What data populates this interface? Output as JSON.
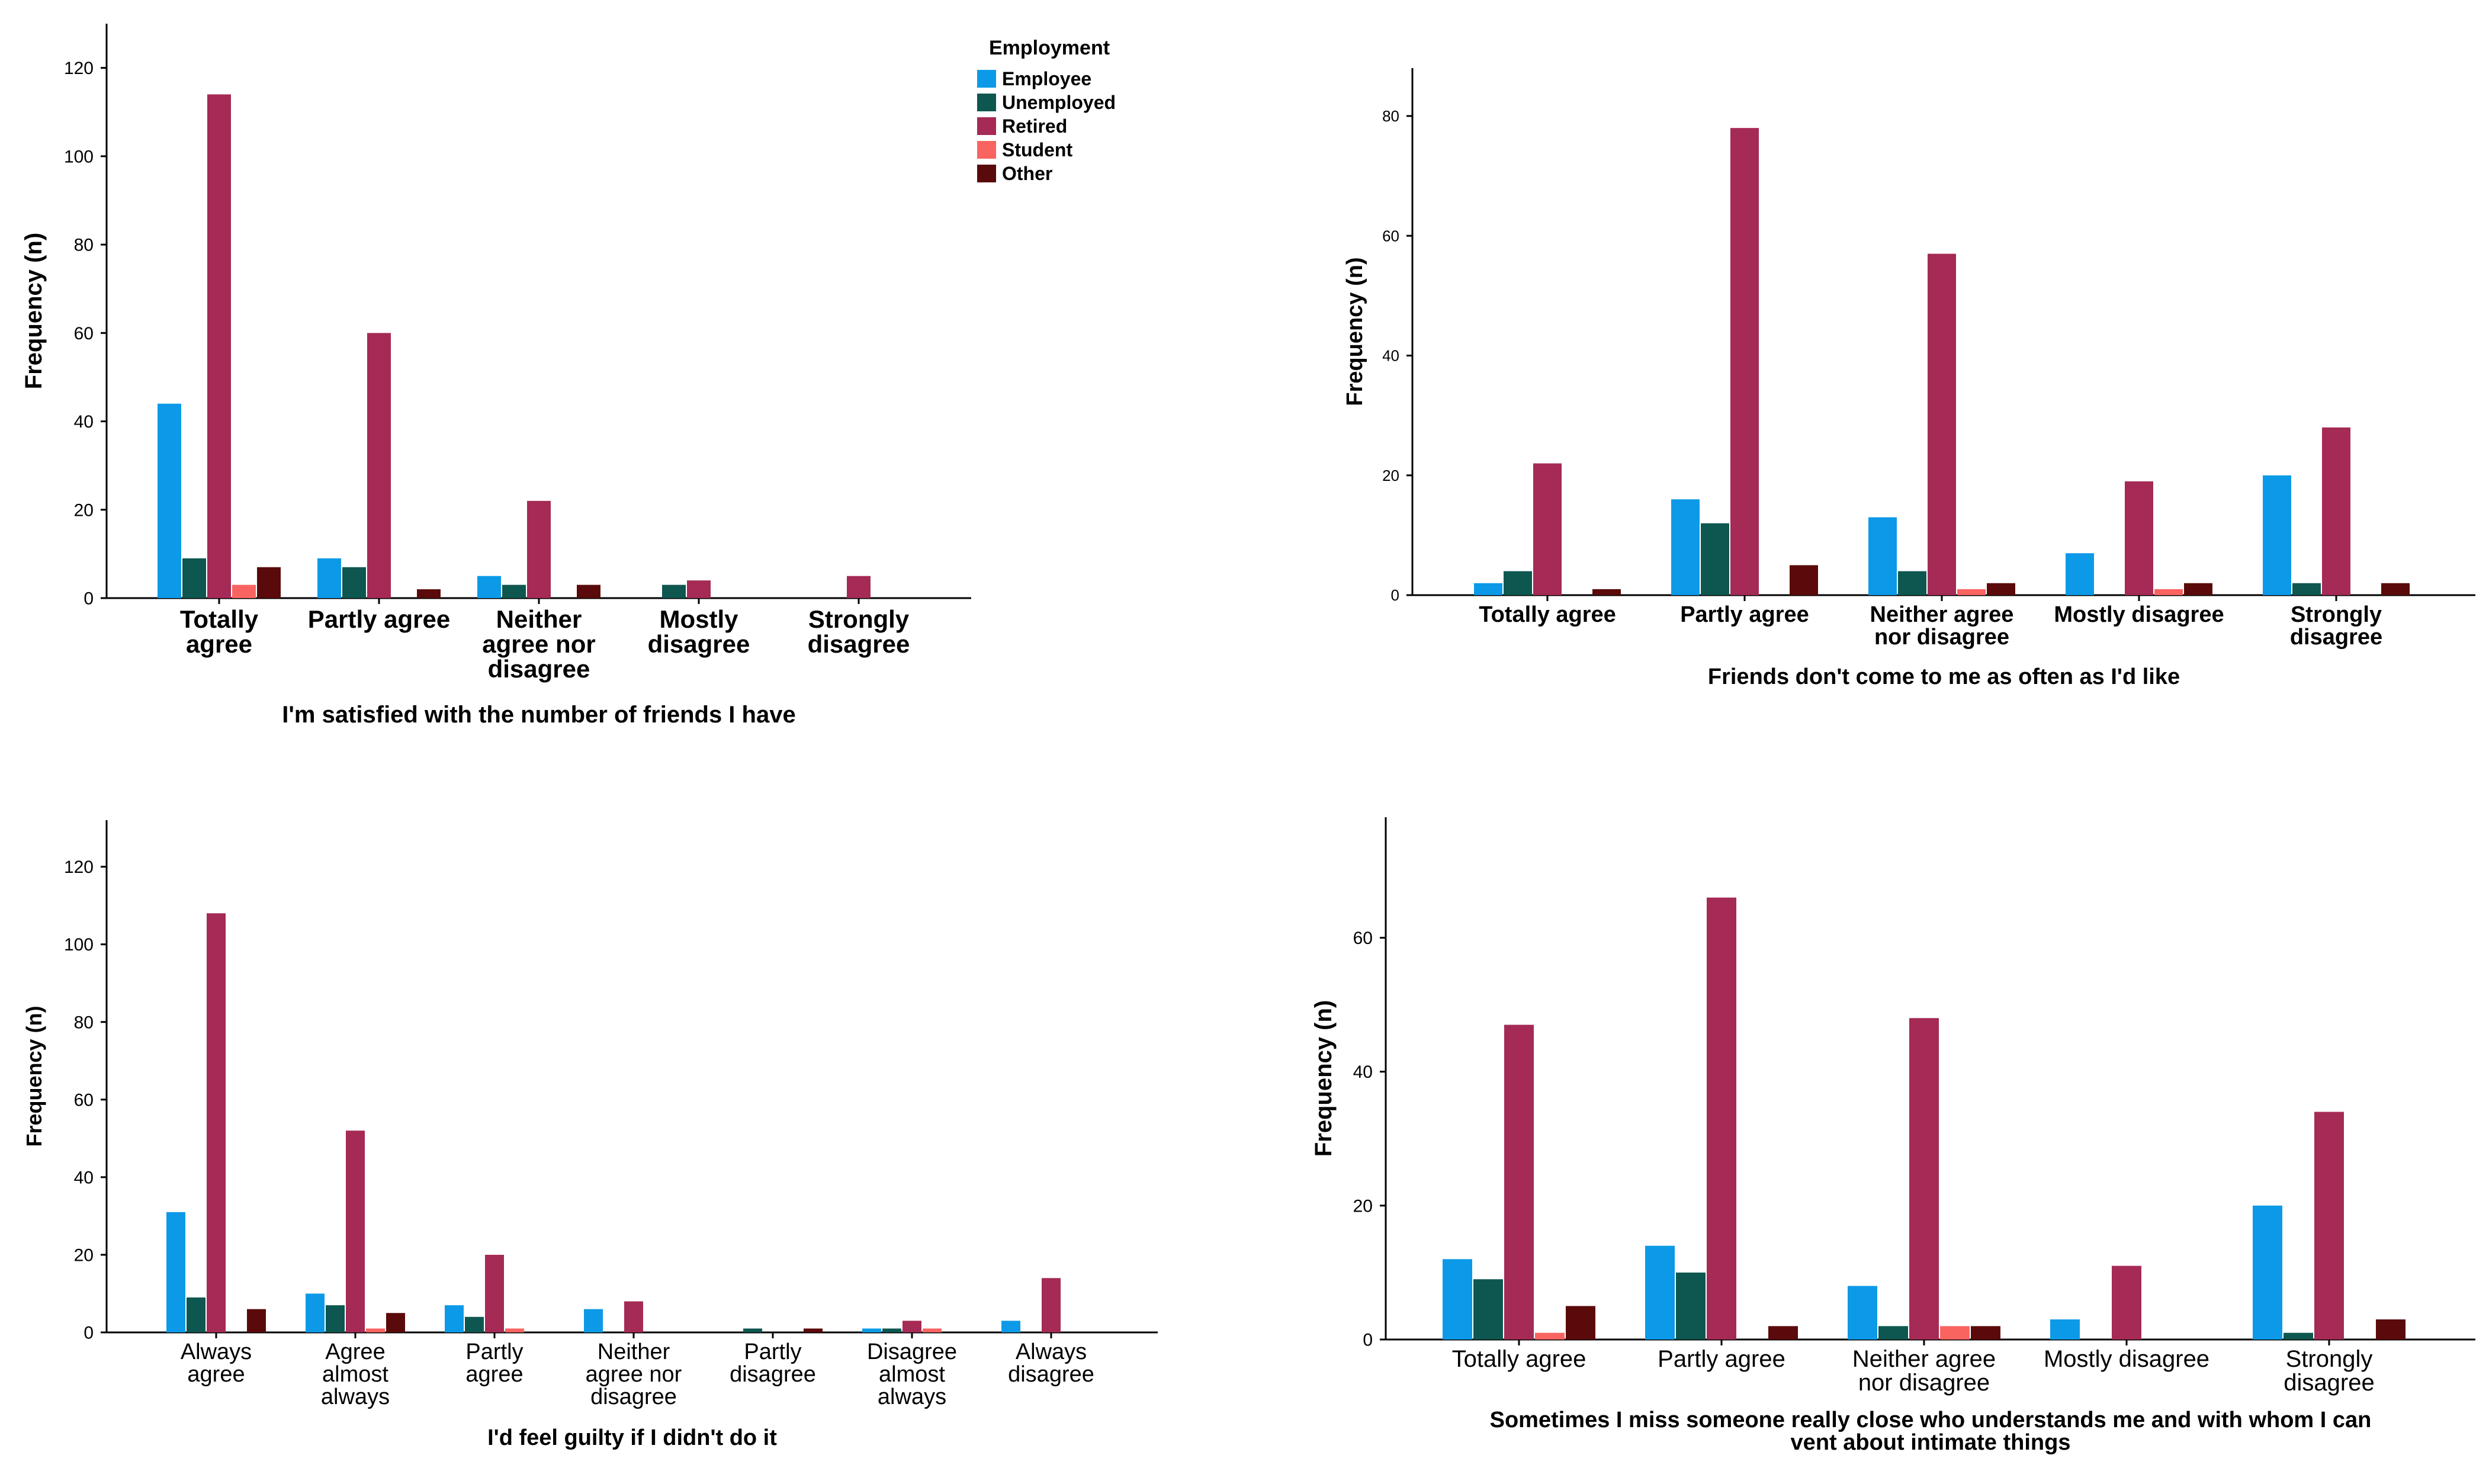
{
  "legend": {
    "title": "Employment",
    "entries": [
      {
        "name": "Employee",
        "color": "#0c9ae8"
      },
      {
        "name": "Unemployed",
        "color": "#0e5750"
      },
      {
        "name": "Retired",
        "color": "#a52a55"
      },
      {
        "name": "Student",
        "color": "#f96461"
      },
      {
        "name": "Other",
        "color": "#5a0a0a"
      }
    ]
  },
  "chart_data": [
    {
      "type": "bar",
      "title": "",
      "xlabel": "I'm satisfied with the number of friends I have",
      "ylabel": "Frequency (n)",
      "ylim": [
        0,
        130
      ],
      "yticks": [
        0,
        20,
        40,
        60,
        80,
        100,
        120
      ],
      "categories": [
        "Totally agree",
        "Partly agree",
        "Neither agree nor disagree",
        "Mostly disagree",
        "Strongly disagree"
      ],
      "series": [
        {
          "name": "Employee",
          "values": [
            44,
            9,
            5,
            0,
            0
          ]
        },
        {
          "name": "Unemployed",
          "values": [
            9,
            7,
            3,
            3,
            0
          ]
        },
        {
          "name": "Retired",
          "values": [
            114,
            60,
            22,
            4,
            5
          ]
        },
        {
          "name": "Student",
          "values": [
            3,
            0,
            0,
            0,
            0
          ]
        },
        {
          "name": "Other",
          "values": [
            7,
            2,
            3,
            0,
            0
          ]
        }
      ]
    },
    {
      "type": "bar",
      "title": "",
      "xlabel": "Friends don't come to me as often as I'd like",
      "ylabel": "Frequency (n)",
      "ylim": [
        0,
        88
      ],
      "yticks": [
        0,
        20,
        40,
        60,
        80
      ],
      "categories": [
        "Totally agree",
        "Partly agree",
        "Neither agree nor disagree",
        "Mostly disagree",
        "Strongly disagree"
      ],
      "series": [
        {
          "name": "Employee",
          "values": [
            2,
            16,
            13,
            7,
            20
          ]
        },
        {
          "name": "Unemployed",
          "values": [
            4,
            12,
            4,
            0,
            2
          ]
        },
        {
          "name": "Retired",
          "values": [
            22,
            78,
            57,
            19,
            28
          ]
        },
        {
          "name": "Student",
          "values": [
            0,
            0,
            1,
            1,
            0
          ]
        },
        {
          "name": "Other",
          "values": [
            1,
            5,
            2,
            2,
            2
          ]
        }
      ]
    },
    {
      "type": "bar",
      "title": "",
      "xlabel": "I'd feel guilty if I didn't do it",
      "ylabel": "Frequency (n)",
      "ylim": [
        0,
        132
      ],
      "yticks": [
        0,
        20,
        40,
        60,
        80,
        100,
        120
      ],
      "categories": [
        "Always agree",
        "Agree almost always",
        "Partly agree",
        "Neither agree nor disagree",
        "Partly disagree",
        "Disagree almost always",
        "Always disagree"
      ],
      "series": [
        {
          "name": "Employee",
          "values": [
            31,
            10,
            7,
            6,
            0,
            1,
            3
          ]
        },
        {
          "name": "Unemployed",
          "values": [
            9,
            7,
            4,
            0,
            1,
            1,
            0
          ]
        },
        {
          "name": "Retired",
          "values": [
            108,
            52,
            20,
            8,
            0,
            3,
            14
          ]
        },
        {
          "name": "Student",
          "values": [
            0,
            1,
            1,
            0,
            0,
            1,
            0
          ]
        },
        {
          "name": "Other",
          "values": [
            6,
            5,
            0,
            0,
            1,
            0,
            0
          ]
        }
      ]
    },
    {
      "type": "bar",
      "title": "",
      "xlabel": "Sometimes I miss someone really close who understands me and with whom I can vent about intimate things",
      "ylabel": "Frequency (n)",
      "ylim": [
        0,
        78
      ],
      "yticks": [
        0,
        20,
        40,
        60
      ],
      "categories": [
        "Totally agree",
        "Partly agree",
        "Neither agree nor disagree",
        "Mostly disagree",
        "Strongly disagree"
      ],
      "series": [
        {
          "name": "Employee",
          "values": [
            12,
            14,
            8,
            3,
            20
          ]
        },
        {
          "name": "Unemployed",
          "values": [
            9,
            10,
            2,
            0,
            1
          ]
        },
        {
          "name": "Retired",
          "values": [
            47,
            66,
            48,
            11,
            34
          ]
        },
        {
          "name": "Student",
          "values": [
            1,
            0,
            2,
            0,
            0
          ]
        },
        {
          "name": "Other",
          "values": [
            5,
            2,
            2,
            0,
            3
          ]
        }
      ]
    }
  ]
}
